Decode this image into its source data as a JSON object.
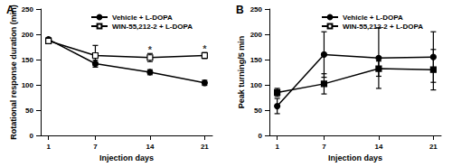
{
  "chart_data": [
    {
      "type": "line",
      "title": "A",
      "x_label": "Injection days",
      "y_label": "Rotational response duration (min)",
      "x": [
        1,
        7,
        14,
        21
      ],
      "xlim": [
        0,
        22
      ],
      "xticks": [
        1,
        7,
        14,
        21
      ],
      "ylim": [
        0,
        250
      ],
      "yticks": [
        0,
        50,
        100,
        150,
        200,
        250
      ],
      "grid": false,
      "legend": "upper right",
      "series": [
        {
          "name": "Vehicle + L-DOPA",
          "color": "#000000",
          "marker": "circle",
          "line_style": "solid",
          "values": [
            190,
            142,
            125,
            104
          ],
          "errors": [
            3,
            7,
            5,
            5
          ]
        },
        {
          "name": "WIN-55,212-2 + L-DOPA",
          "color": "#000000",
          "marker": "open_square",
          "line_style": "solid",
          "values": [
            187,
            158,
            154,
            158
          ],
          "errors": [
            5,
            20,
            8,
            6
          ]
        }
      ],
      "annotations": [
        {
          "text": "*",
          "x": 14,
          "y": 170
        },
        {
          "text": "*",
          "x": 21,
          "y": 172
        }
      ]
    },
    {
      "type": "line",
      "title": "B",
      "x_label": "Injection days",
      "y_label": "Peak turning/5 min",
      "x": [
        1,
        7,
        14,
        21
      ],
      "xlim": [
        0,
        22
      ],
      "xticks": [
        1,
        7,
        14,
        21
      ],
      "ylim": [
        0,
        250
      ],
      "yticks": [
        0,
        50,
        100,
        150,
        200,
        250
      ],
      "grid": false,
      "legend": "upper right",
      "series": [
        {
          "name": "Vehicle + L-DOPA",
          "color": "#000000",
          "marker": "circle",
          "line_style": "solid",
          "values": [
            58,
            160,
            153,
            155
          ],
          "errors": [
            15,
            45,
            60,
            50
          ]
        },
        {
          "name": "WIN-55,212-2 + L-DOPA",
          "color": "#000000",
          "marker": "square",
          "line_style": "solid",
          "values": [
            85,
            102,
            132,
            130
          ],
          "errors": [
            8,
            20,
            15,
            40
          ]
        }
      ],
      "annotations": []
    }
  ]
}
